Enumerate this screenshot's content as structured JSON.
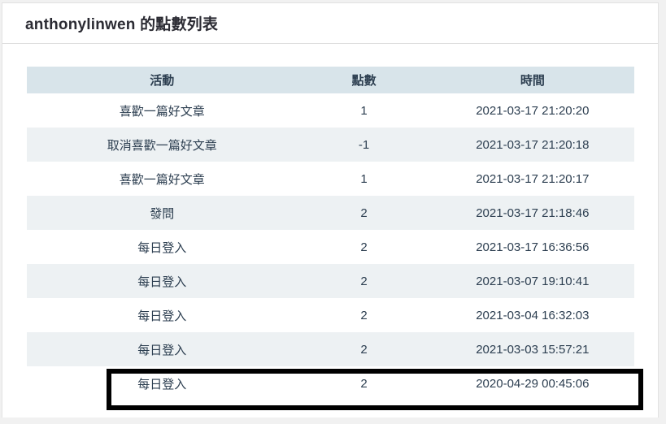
{
  "page": {
    "title": "anthonylinwen 的點數列表"
  },
  "table": {
    "columns": {
      "activity": "活動",
      "points": "點數",
      "time": "時間"
    },
    "rows": [
      {
        "activity": "喜歡一篇好文章",
        "points": "1",
        "time": "2021-03-17 21:20:20",
        "highlighted": false
      },
      {
        "activity": "取消喜歡一篇好文章",
        "points": "-1",
        "time": "2021-03-17 21:20:18",
        "highlighted": false
      },
      {
        "activity": "喜歡一篇好文章",
        "points": "1",
        "time": "2021-03-17 21:20:17",
        "highlighted": false
      },
      {
        "activity": "發問",
        "points": "2",
        "time": "2021-03-17 21:18:46",
        "highlighted": false
      },
      {
        "activity": "每日登入",
        "points": "2",
        "time": "2021-03-17 16:36:56",
        "highlighted": false
      },
      {
        "activity": "每日登入",
        "points": "2",
        "time": "2021-03-07 19:10:41",
        "highlighted": false
      },
      {
        "activity": "每日登入",
        "points": "2",
        "time": "2021-03-04 16:32:03",
        "highlighted": false
      },
      {
        "activity": "每日登入",
        "points": "2",
        "time": "2021-03-03 15:57:21",
        "highlighted": false
      },
      {
        "activity": "每日登入",
        "points": "2",
        "time": "2020-04-29 00:45:06",
        "highlighted": true
      }
    ]
  },
  "colors": {
    "page_background": "#f1f1f1",
    "panel_background": "#ffffff",
    "header_row_background": "#d8e4ea",
    "alt_row_background": "#edf1f3",
    "text": "#2c3e50",
    "title_text": "#2b2b33",
    "highlight_border": "#000000"
  }
}
